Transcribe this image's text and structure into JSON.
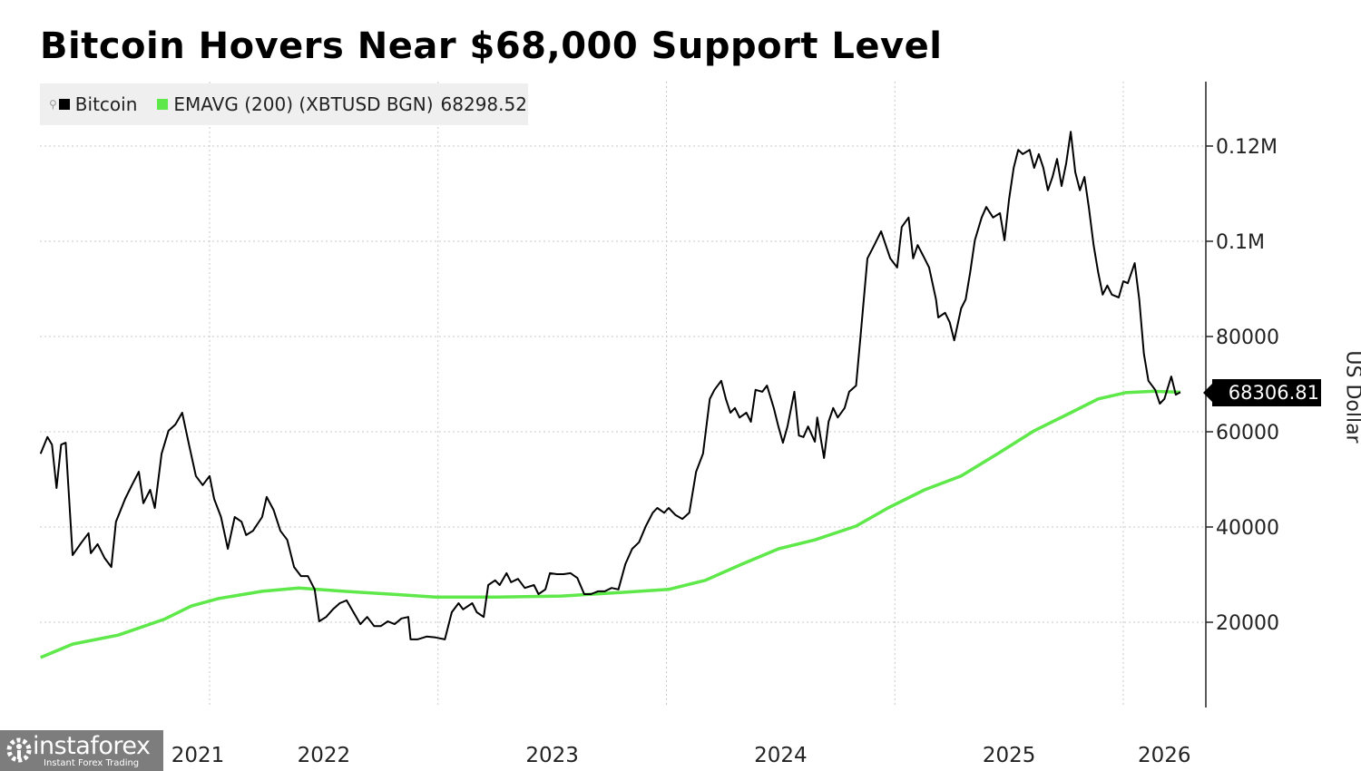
{
  "chart_data": {
    "type": "line",
    "title": "Bitcoin Hovers Near $68,000 Support Level",
    "ylabel": "US Dollar",
    "y_unit_note": "series values in thousands of USD",
    "ylim": [
      0,
      130
    ],
    "xlim": [
      2021.26,
      2026.36
    ],
    "grid": true,
    "legend_placement": "top-left",
    "y_ticks": [
      {
        "value": 20,
        "label": "20000"
      },
      {
        "value": 40,
        "label": "40000"
      },
      {
        "value": 60,
        "label": "60000"
      },
      {
        "value": 80,
        "label": "80000"
      },
      {
        "value": 100,
        "label": "0.1M"
      },
      {
        "value": 120,
        "label": "0.12M"
      }
    ],
    "x_ticks": [
      {
        "boundary": 2022,
        "label": "2021",
        "center": 2021.5
      },
      {
        "boundary": 2023,
        "label": "2022",
        "center": 2022.5
      },
      {
        "boundary": 2024,
        "label": "2023",
        "center": 2023.5
      },
      {
        "boundary": 2025,
        "label": "2024",
        "center": 2024.5
      },
      {
        "boundary": 2026,
        "label": "2025",
        "center": 2025.5
      },
      {
        "boundary": null,
        "label": "2026",
        "center": 2026.18
      }
    ],
    "last_price_label": "68306.81",
    "series": [
      {
        "name": "Bitcoin",
        "color": "#000000",
        "x": [
          2021.26,
          2021.29,
          2021.31,
          2021.33,
          2021.35,
          2021.37,
          2021.4,
          2021.44,
          2021.47,
          2021.48,
          2021.51,
          2021.54,
          2021.57,
          2021.59,
          2021.63,
          2021.66,
          2021.69,
          2021.71,
          2021.74,
          2021.76,
          2021.79,
          2021.82,
          2021.85,
          2021.88,
          2021.91,
          2021.94,
          2021.97,
          2022.0,
          2022.02,
          2022.05,
          2022.08,
          2022.11,
          2022.14,
          2022.16,
          2022.19,
          2022.23,
          2022.25,
          2022.28,
          2022.31,
          2022.34,
          2022.37,
          2022.4,
          2022.43,
          2022.46,
          2022.48,
          2022.51,
          2022.54,
          2022.57,
          2022.6,
          2022.63,
          2022.66,
          2022.69,
          2022.72,
          2022.75,
          2022.78,
          2022.81,
          2022.84,
          2022.87,
          2022.88,
          2022.91,
          2022.95,
          2022.99,
          2023.03,
          2023.06,
          2023.09,
          2023.11,
          2023.15,
          2023.17,
          2023.2,
          2023.22,
          2023.25,
          2023.27,
          2023.3,
          2023.32,
          2023.35,
          2023.38,
          2023.42,
          2023.44,
          2023.47,
          2023.49,
          2023.52,
          2023.55,
          2023.58,
          2023.61,
          2023.64,
          2023.67,
          2023.7,
          2023.73,
          2023.76,
          2023.79,
          2023.82,
          2023.85,
          2023.88,
          2023.91,
          2023.94,
          2023.96,
          2023.99,
          2024.01,
          2024.04,
          2024.07,
          2024.1,
          2024.13,
          2024.16,
          2024.19,
          2024.21,
          2024.24,
          2024.26,
          2024.28,
          2024.3,
          2024.32,
          2024.35,
          2024.37,
          2024.39,
          2024.42,
          2024.44,
          2024.47,
          2024.49,
          2024.51,
          2024.53,
          2024.56,
          2024.58,
          2024.6,
          2024.62,
          2024.65,
          2024.66,
          2024.69,
          2024.71,
          2024.73,
          2024.75,
          2024.78,
          2024.8,
          2024.83,
          2024.85,
          2024.88,
          2024.91,
          2024.94,
          2024.96,
          2024.98,
          2025.01,
          2025.03,
          2025.06,
          2025.08,
          2025.1,
          2025.13,
          2025.15,
          2025.18,
          2025.19,
          2025.22,
          2025.24,
          2025.26,
          2025.29,
          2025.31,
          2025.33,
          2025.35,
          2025.38,
          2025.4,
          2025.43,
          2025.46,
          2025.48,
          2025.5,
          2025.52,
          2025.54,
          2025.56,
          2025.59,
          2025.61,
          2025.63,
          2025.65,
          2025.67,
          2025.69,
          2025.71,
          2025.73,
          2025.75,
          2025.77,
          2025.79,
          2025.81,
          2025.83,
          2025.85,
          2025.87,
          2025.89,
          2025.91,
          2025.93,
          2025.95,
          2025.98,
          2026.0,
          2026.02,
          2026.05,
          2026.07,
          2026.09,
          2026.11,
          2026.14,
          2026.16,
          2026.18,
          2026.21,
          2026.23,
          2026.25
        ],
        "y": [
          55.4,
          58.9,
          57.3,
          48.2,
          57.3,
          57.7,
          34.1,
          36.8,
          38.7,
          34.5,
          36.4,
          33.5,
          31.6,
          41.1,
          45.9,
          48.8,
          51.6,
          45.0,
          47.8,
          44.0,
          55.4,
          60.2,
          61.5,
          64.0,
          57.3,
          50.7,
          48.8,
          50.7,
          45.9,
          42.1,
          35.4,
          42.1,
          41.1,
          38.3,
          39.2,
          42.1,
          46.3,
          43.6,
          39.2,
          37.3,
          31.6,
          29.7,
          29.7,
          26.9,
          20.2,
          21.1,
          22.7,
          24.0,
          24.6,
          22.1,
          19.6,
          21.1,
          19.2,
          19.2,
          20.2,
          19.6,
          20.8,
          21.1,
          16.4,
          16.4,
          17.0,
          16.8,
          16.4,
          22.1,
          24.0,
          22.7,
          24.0,
          22.1,
          21.1,
          27.8,
          28.8,
          27.8,
          30.3,
          28.4,
          29.1,
          27.2,
          27.8,
          25.9,
          26.9,
          30.3,
          30.1,
          30.1,
          30.3,
          29.3,
          25.9,
          25.9,
          26.5,
          26.5,
          27.2,
          26.9,
          32.2,
          35.4,
          36.8,
          40.2,
          43.0,
          44.0,
          43.0,
          44.0,
          42.5,
          41.7,
          43.0,
          51.6,
          55.4,
          66.9,
          68.8,
          70.7,
          66.9,
          64.0,
          65.0,
          63.0,
          64.0,
          62.1,
          68.8,
          68.4,
          69.7,
          65.0,
          61.1,
          57.7,
          61.1,
          68.4,
          59.2,
          58.9,
          61.1,
          57.9,
          63.0,
          54.5,
          62.1,
          65.0,
          63.0,
          65.0,
          68.4,
          69.7,
          80.2,
          96.4,
          99.2,
          102.1,
          99.2,
          96.4,
          94.5,
          103.0,
          105.0,
          96.4,
          99.2,
          96.4,
          94.5,
          87.8,
          84.0,
          85.0,
          83.0,
          79.2,
          85.9,
          87.8,
          93.5,
          100.2,
          105.0,
          107.2,
          105.0,
          105.9,
          100.2,
          108.8,
          115.4,
          119.2,
          118.3,
          119.2,
          115.4,
          118.3,
          115.4,
          110.7,
          113.5,
          117.3,
          111.6,
          116.4,
          123.0,
          114.5,
          110.7,
          113.5,
          106.9,
          99.2,
          93.5,
          88.8,
          90.7,
          88.8,
          88.2,
          91.6,
          91.2,
          95.4,
          87.8,
          76.4,
          70.7,
          68.8,
          65.9,
          66.9,
          71.6,
          67.8,
          68.3
        ]
      },
      {
        "name": "EMAVG (200) (XBTUSD BGN)",
        "legend_value": "68298.52",
        "color": "#5ee84a",
        "x": [
          2021.26,
          2021.4,
          2021.6,
          2021.8,
          2021.92,
          2022.04,
          2022.23,
          2022.39,
          2022.59,
          2022.79,
          2022.99,
          2023.26,
          2023.54,
          2023.82,
          2024.01,
          2024.17,
          2024.33,
          2024.49,
          2024.65,
          2024.83,
          2024.97,
          2025.13,
          2025.29,
          2025.45,
          2025.61,
          2025.77,
          2025.89,
          2026.01,
          2026.13,
          2026.25
        ],
        "y": [
          12.6,
          15.4,
          17.3,
          20.6,
          23.4,
          25.0,
          26.5,
          27.2,
          26.5,
          25.9,
          25.3,
          25.3,
          25.5,
          26.3,
          26.9,
          28.8,
          32.2,
          35.4,
          37.3,
          40.2,
          44.0,
          47.8,
          50.7,
          55.4,
          60.2,
          64.0,
          66.9,
          68.2,
          68.5,
          68.3
        ]
      }
    ]
  },
  "watermark": {
    "name": "instaforex",
    "tagline": "Instant Forex Trading"
  }
}
